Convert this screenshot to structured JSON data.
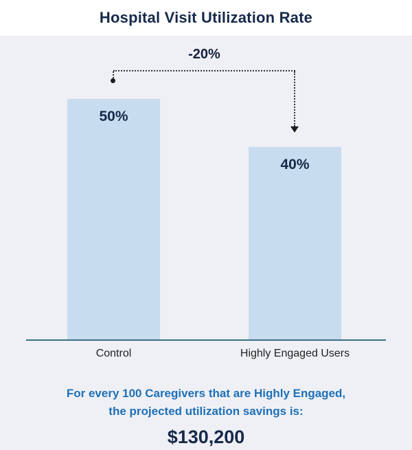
{
  "title": "Hospital Visit Utilization Rate",
  "colors": {
    "background": "#eff0f5",
    "bar": "#c7dcee",
    "navy": "#16294a",
    "accent_blue": "#1e70b8",
    "axis": "#3a6f84"
  },
  "chart_data": {
    "type": "bar",
    "title": "Hospital Visit Utilization Rate",
    "categories": [
      "Control",
      "Highly Engaged Users"
    ],
    "values": [
      50,
      40
    ],
    "value_labels": [
      "50%",
      "40%"
    ],
    "xlabel": "",
    "ylabel": "",
    "ylim": [
      0,
      50
    ],
    "grid": false,
    "annotation": {
      "label": "-20%"
    }
  },
  "caption": {
    "line1": "For every 100 Caregivers that are Highly Engaged,",
    "line2": "the projected utilization savings is:",
    "amount": "$130,200"
  }
}
